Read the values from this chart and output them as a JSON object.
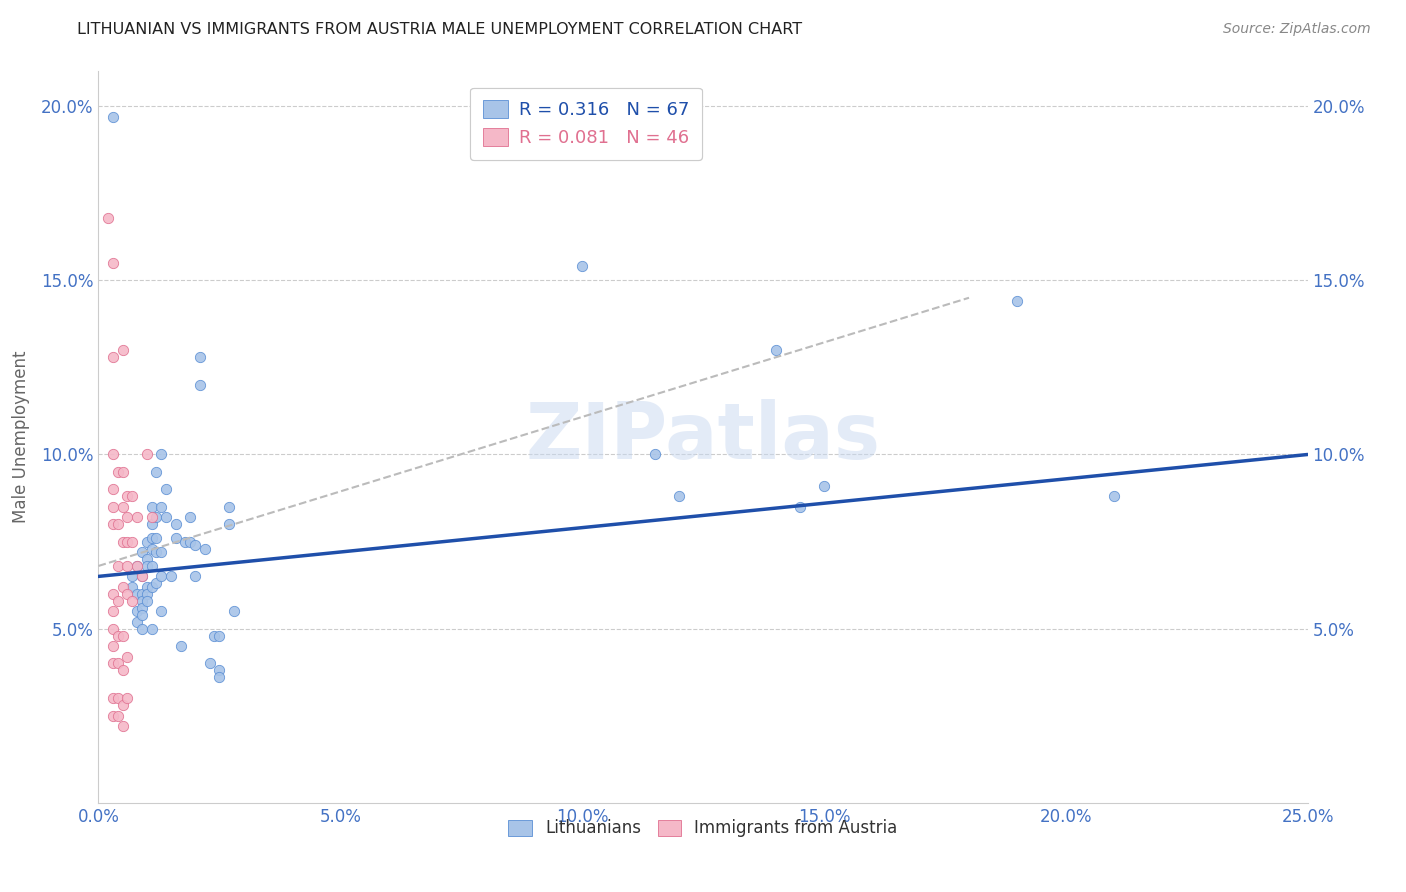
{
  "title": "LITHUANIAN VS IMMIGRANTS FROM AUSTRIA MALE UNEMPLOYMENT CORRELATION CHART",
  "source": "Source: ZipAtlas.com",
  "ylabel": "Male Unemployment",
  "xlim": [
    0.0,
    0.25
  ],
  "ylim": [
    0.0,
    0.21
  ],
  "xtick_vals": [
    0.0,
    0.05,
    0.1,
    0.15,
    0.2,
    0.25
  ],
  "xtick_labels": [
    "0.0%",
    "5.0%",
    "10.0%",
    "15.0%",
    "20.0%",
    "25.0%"
  ],
  "ytick_vals": [
    0.05,
    0.1,
    0.15,
    0.2
  ],
  "ytick_labels": [
    "5.0%",
    "10.0%",
    "15.0%",
    "20.0%"
  ],
  "legend_r_blue": "R = 0.316",
  "legend_n_blue": "N = 67",
  "legend_r_pink": "R = 0.081",
  "legend_n_pink": "N = 46",
  "color_blue_fill": "#a8c4e8",
  "color_blue_edge": "#5b8fd4",
  "color_pink_fill": "#f5b8c8",
  "color_pink_edge": "#e07090",
  "color_line_blue": "#1f4faa",
  "color_line_pink": "#bbbbbb",
  "watermark": "ZIPatlas",
  "watermark_color": "#c8d8f0",
  "blue_points": [
    [
      0.003,
      0.197
    ],
    [
      0.007,
      0.065
    ],
    [
      0.007,
      0.062
    ],
    [
      0.008,
      0.068
    ],
    [
      0.008,
      0.06
    ],
    [
      0.008,
      0.055
    ],
    [
      0.008,
      0.052
    ],
    [
      0.009,
      0.072
    ],
    [
      0.009,
      0.065
    ],
    [
      0.009,
      0.06
    ],
    [
      0.009,
      0.058
    ],
    [
      0.009,
      0.056
    ],
    [
      0.009,
      0.054
    ],
    [
      0.009,
      0.05
    ],
    [
      0.01,
      0.075
    ],
    [
      0.01,
      0.07
    ],
    [
      0.01,
      0.068
    ],
    [
      0.01,
      0.062
    ],
    [
      0.01,
      0.06
    ],
    [
      0.01,
      0.058
    ],
    [
      0.011,
      0.085
    ],
    [
      0.011,
      0.08
    ],
    [
      0.011,
      0.076
    ],
    [
      0.011,
      0.073
    ],
    [
      0.011,
      0.068
    ],
    [
      0.011,
      0.062
    ],
    [
      0.011,
      0.05
    ],
    [
      0.012,
      0.095
    ],
    [
      0.012,
      0.082
    ],
    [
      0.012,
      0.076
    ],
    [
      0.012,
      0.072
    ],
    [
      0.012,
      0.063
    ],
    [
      0.013,
      0.1
    ],
    [
      0.013,
      0.085
    ],
    [
      0.013,
      0.072
    ],
    [
      0.013,
      0.065
    ],
    [
      0.013,
      0.055
    ],
    [
      0.014,
      0.09
    ],
    [
      0.014,
      0.082
    ],
    [
      0.015,
      0.065
    ],
    [
      0.016,
      0.08
    ],
    [
      0.016,
      0.076
    ],
    [
      0.017,
      0.045
    ],
    [
      0.018,
      0.075
    ],
    [
      0.019,
      0.082
    ],
    [
      0.019,
      0.075
    ],
    [
      0.02,
      0.074
    ],
    [
      0.02,
      0.065
    ],
    [
      0.021,
      0.128
    ],
    [
      0.021,
      0.12
    ],
    [
      0.022,
      0.073
    ],
    [
      0.023,
      0.04
    ],
    [
      0.024,
      0.048
    ],
    [
      0.025,
      0.048
    ],
    [
      0.025,
      0.038
    ],
    [
      0.025,
      0.036
    ],
    [
      0.027,
      0.085
    ],
    [
      0.027,
      0.08
    ],
    [
      0.028,
      0.055
    ],
    [
      0.1,
      0.154
    ],
    [
      0.115,
      0.1
    ],
    [
      0.12,
      0.088
    ],
    [
      0.14,
      0.13
    ],
    [
      0.145,
      0.085
    ],
    [
      0.15,
      0.091
    ],
    [
      0.19,
      0.144
    ],
    [
      0.21,
      0.088
    ]
  ],
  "pink_points": [
    [
      0.002,
      0.168
    ],
    [
      0.003,
      0.155
    ],
    [
      0.003,
      0.128
    ],
    [
      0.003,
      0.1
    ],
    [
      0.003,
      0.09
    ],
    [
      0.003,
      0.085
    ],
    [
      0.003,
      0.08
    ],
    [
      0.003,
      0.06
    ],
    [
      0.003,
      0.055
    ],
    [
      0.003,
      0.05
    ],
    [
      0.003,
      0.045
    ],
    [
      0.003,
      0.04
    ],
    [
      0.003,
      0.03
    ],
    [
      0.003,
      0.025
    ],
    [
      0.004,
      0.095
    ],
    [
      0.004,
      0.08
    ],
    [
      0.004,
      0.068
    ],
    [
      0.004,
      0.058
    ],
    [
      0.004,
      0.048
    ],
    [
      0.004,
      0.04
    ],
    [
      0.004,
      0.03
    ],
    [
      0.004,
      0.025
    ],
    [
      0.005,
      0.13
    ],
    [
      0.005,
      0.095
    ],
    [
      0.005,
      0.085
    ],
    [
      0.005,
      0.075
    ],
    [
      0.005,
      0.062
    ],
    [
      0.005,
      0.048
    ],
    [
      0.005,
      0.038
    ],
    [
      0.005,
      0.028
    ],
    [
      0.005,
      0.022
    ],
    [
      0.006,
      0.088
    ],
    [
      0.006,
      0.082
    ],
    [
      0.006,
      0.075
    ],
    [
      0.006,
      0.068
    ],
    [
      0.006,
      0.06
    ],
    [
      0.006,
      0.042
    ],
    [
      0.006,
      0.03
    ],
    [
      0.007,
      0.088
    ],
    [
      0.007,
      0.075
    ],
    [
      0.007,
      0.058
    ],
    [
      0.008,
      0.082
    ],
    [
      0.008,
      0.068
    ],
    [
      0.009,
      0.065
    ],
    [
      0.01,
      0.1
    ],
    [
      0.011,
      0.082
    ]
  ],
  "blue_line_x": [
    0.0,
    0.25
  ],
  "blue_line_y": [
    0.065,
    0.1
  ],
  "pink_line_x": [
    0.0,
    0.18
  ],
  "pink_line_y": [
    0.068,
    0.145
  ]
}
